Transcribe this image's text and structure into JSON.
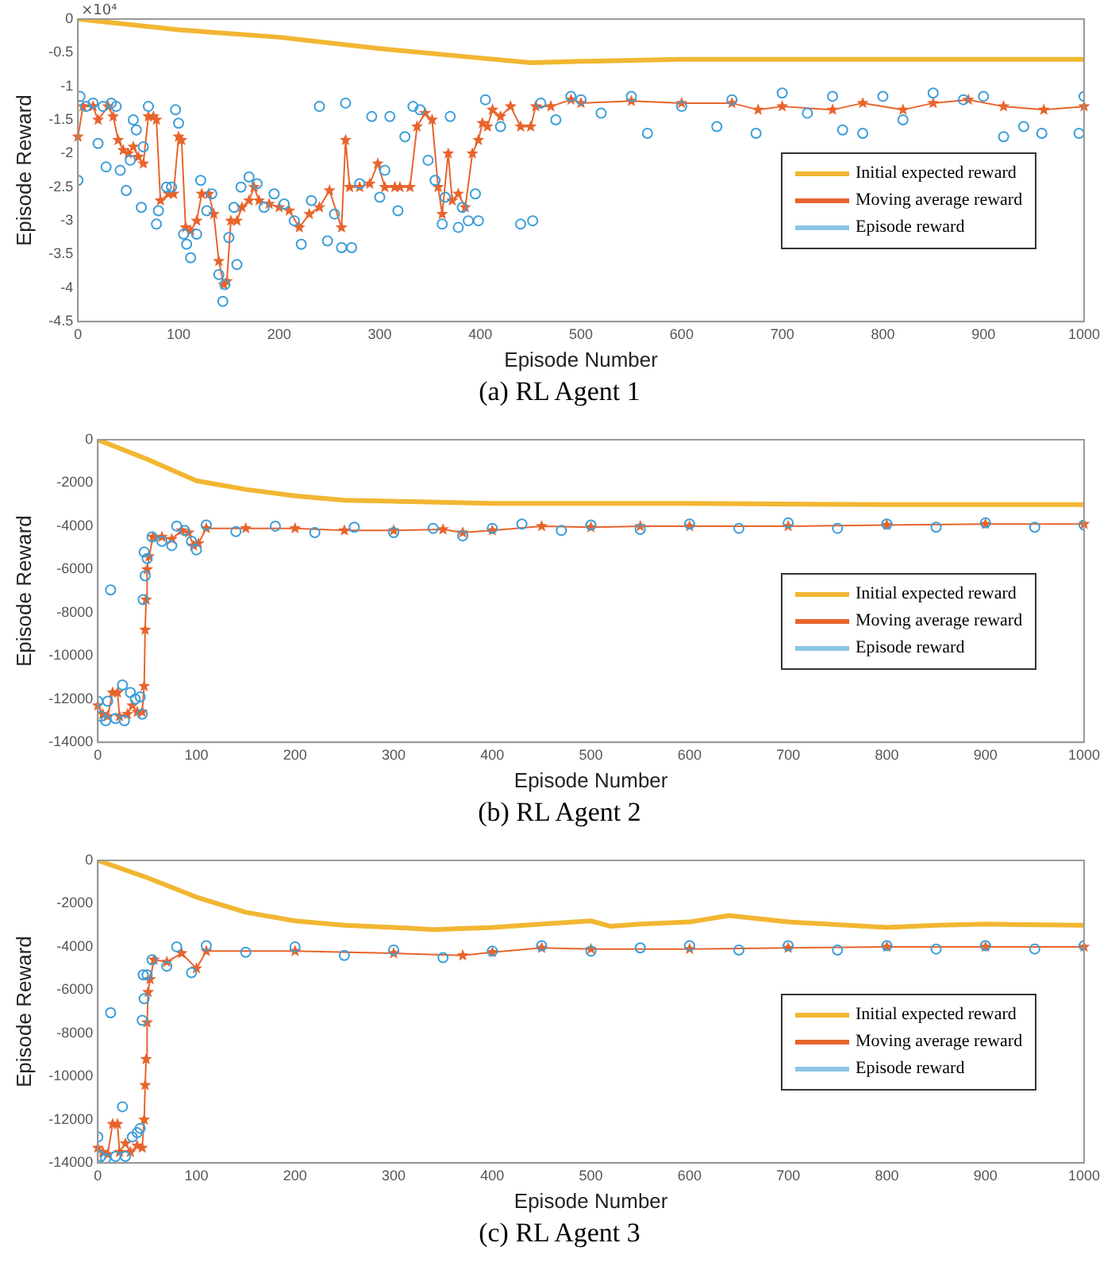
{
  "chart_data": [
    {
      "type": "line",
      "title": "(a) RL Agent 1",
      "xlabel": "Episode Number",
      "ylabel": "Episode Reward",
      "annotations": [
        "×10⁴"
      ],
      "xlim": [
        0,
        1000
      ],
      "xticks": [
        0,
        100,
        200,
        300,
        400,
        500,
        600,
        700,
        800,
        900,
        1000
      ],
      "ylim": [
        -4.5,
        0
      ],
      "yticks": [
        -4.5,
        -4,
        -3.5,
        -3,
        -2.5,
        -2,
        -1.5,
        -1,
        -0.5,
        0
      ],
      "grid": false,
      "legend": "right",
      "series": [
        {
          "name": "Initial expected reward",
          "color": "#f2b632",
          "marker": "none",
          "x": [
            0,
            100,
            200,
            300,
            400,
            450,
            500,
            600,
            700,
            800,
            900,
            1000
          ],
          "values": [
            0,
            -0.16,
            -0.27,
            -0.44,
            -0.58,
            -0.65,
            -0.63,
            -0.6,
            -0.6,
            -0.6,
            -0.6,
            -0.6
          ]
        },
        {
          "name": "Moving average reward",
          "color": "#e8642c",
          "marker": "star",
          "x": [
            0,
            5,
            15,
            20,
            30,
            35,
            40,
            45,
            50,
            55,
            60,
            65,
            70,
            75,
            78,
            82,
            90,
            95,
            100,
            103,
            107,
            112,
            118,
            123,
            130,
            135,
            140,
            145,
            148,
            152,
            158,
            163,
            170,
            175,
            180,
            190,
            200,
            210,
            220,
            230,
            240,
            250,
            262,
            266,
            270,
            280,
            290,
            298,
            305,
            315,
            320,
            330,
            337,
            345,
            352,
            358,
            362,
            368,
            372,
            378,
            385,
            392,
            398,
            402,
            407,
            412,
            420,
            430,
            440,
            450,
            455,
            470,
            490,
            500,
            550,
            600,
            650,
            676,
            700,
            750,
            780,
            820,
            850,
            885,
            920,
            960,
            1000
          ],
          "values": [
            -1.75,
            -1.3,
            -1.3,
            -1.5,
            -1.3,
            -1.45,
            -1.8,
            -1.95,
            -2.0,
            -1.9,
            -2.05,
            -2.15,
            -1.45,
            -1.45,
            -1.5,
            -2.7,
            -2.6,
            -2.6,
            -1.75,
            -1.8,
            -3.1,
            -3.15,
            -3.0,
            -2.6,
            -2.6,
            -2.9,
            -3.6,
            -3.95,
            -3.9,
            -3.0,
            -3.0,
            -2.8,
            -2.7,
            -2.5,
            -2.7,
            -2.75,
            -2.8,
            -2.85,
            -3.1,
            -2.9,
            -2.8,
            -2.55,
            -3.1,
            -1.8,
            -2.5,
            -2.5,
            -2.45,
            -2.15,
            -2.5,
            -2.5,
            -2.5,
            -2.5,
            -1.6,
            -1.4,
            -1.5,
            -2.5,
            -2.9,
            -2.0,
            -2.7,
            -2.6,
            -2.8,
            -2.0,
            -1.8,
            -1.55,
            -1.6,
            -1.35,
            -1.45,
            -1.3,
            -1.6,
            -1.6,
            -1.3,
            -1.3,
            -1.2,
            -1.25,
            -1.22,
            -1.25,
            -1.25,
            -1.35,
            -1.3,
            -1.35,
            -1.25,
            -1.35,
            -1.25,
            -1.2,
            -1.3,
            -1.35,
            -1.3
          ]
        },
        {
          "name": "Episode reward",
          "color": "#3d9ed8",
          "type": "scatter",
          "marker": "circle",
          "x": [
            0,
            2,
            8,
            15,
            20,
            25,
            28,
            33,
            38,
            42,
            48,
            52,
            55,
            58,
            63,
            65,
            70,
            78,
            80,
            88,
            93,
            97,
            100,
            105,
            108,
            112,
            118,
            122,
            128,
            133,
            140,
            144,
            146,
            150,
            155,
            158,
            162,
            170,
            178,
            185,
            195,
            205,
            215,
            222,
            232,
            240,
            248,
            255,
            262,
            266,
            272,
            280,
            292,
            300,
            305,
            310,
            318,
            325,
            333,
            340,
            348,
            355,
            362,
            365,
            370,
            378,
            382,
            388,
            395,
            398,
            405,
            420,
            440,
            452,
            460,
            475,
            490,
            500,
            520,
            550,
            566,
            600,
            635,
            650,
            674,
            700,
            725,
            750,
            760,
            780,
            800,
            820,
            850,
            880,
            900,
            920,
            940,
            958,
            995,
            1000
          ],
          "values": [
            -2.4,
            -1.15,
            -1.3,
            -1.25,
            -1.85,
            -1.3,
            -2.2,
            -1.25,
            -1.3,
            -2.25,
            -2.55,
            -2.1,
            -1.5,
            -1.65,
            -2.8,
            -1.9,
            -1.3,
            -3.05,
            -2.85,
            -2.5,
            -2.5,
            -1.35,
            -1.55,
            -3.2,
            -3.35,
            -3.55,
            -3.2,
            -2.4,
            -2.85,
            -2.6,
            -3.8,
            -4.2,
            -3.95,
            -3.25,
            -2.8,
            -3.65,
            -2.5,
            -2.35,
            -2.45,
            -2.8,
            -2.6,
            -2.75,
            -3.0,
            -3.35,
            -2.7,
            -1.3,
            -3.3,
            -2.9,
            -3.4,
            -1.25,
            -3.4,
            -2.45,
            -1.45,
            -2.65,
            -2.25,
            -1.45,
            -2.85,
            -1.75,
            -1.3,
            -1.35,
            -2.1,
            -2.4,
            -3.05,
            -2.65,
            -1.45,
            -3.1,
            -2.8,
            -3.0,
            -2.6,
            -3.0,
            -1.2,
            -1.6,
            -3.05,
            -3.0,
            -1.25,
            -1.5,
            -1.15,
            -1.2,
            -1.4,
            -1.15,
            -1.7,
            -1.3,
            -1.6,
            -1.2,
            -1.7,
            -1.1,
            -1.4,
            -1.15,
            -1.65,
            -1.7,
            -1.15,
            -1.5,
            -1.1,
            -1.2,
            -1.15,
            -1.75,
            -1.6,
            -1.7,
            -1.7,
            -1.15
          ]
        }
      ]
    },
    {
      "type": "line",
      "title": "(b) RL Agent 2",
      "xlabel": "Episode Number",
      "ylabel": "Episode Reward",
      "xlim": [
        0,
        1000
      ],
      "xticks": [
        0,
        100,
        200,
        300,
        400,
        500,
        600,
        700,
        800,
        900,
        1000
      ],
      "ylim": [
        -14000,
        0
      ],
      "yticks": [
        -14000,
        -12000,
        -10000,
        -8000,
        -6000,
        -4000,
        -2000,
        0
      ],
      "grid": false,
      "legend": "right",
      "series": [
        {
          "name": "Initial expected reward",
          "color": "#f2b632",
          "marker": "none",
          "x": [
            0,
            50,
            100,
            150,
            200,
            250,
            300,
            400,
            500,
            600,
            800,
            1000
          ],
          "values": [
            0,
            -900,
            -1900,
            -2300,
            -2600,
            -2800,
            -2850,
            -2950,
            -2950,
            -2950,
            -3000,
            -3000
          ]
        },
        {
          "name": "Moving average reward",
          "color": "#e8642c",
          "marker": "star",
          "x": [
            0,
            5,
            10,
            15,
            20,
            22,
            30,
            35,
            40,
            45,
            47,
            48,
            49,
            50,
            52,
            56,
            65,
            75,
            85,
            92,
            97,
            102,
            110,
            150,
            200,
            250,
            300,
            350,
            370,
            400,
            450,
            500,
            550,
            600,
            700,
            800,
            900,
            1000
          ],
          "values": [
            -12300,
            -12700,
            -12800,
            -11700,
            -11700,
            -12800,
            -12700,
            -12300,
            -12600,
            -12600,
            -11400,
            -8800,
            -7400,
            -6000,
            -5400,
            -4500,
            -4500,
            -4600,
            -4200,
            -4300,
            -4900,
            -4800,
            -4100,
            -4100,
            -4100,
            -4200,
            -4200,
            -4150,
            -4300,
            -4200,
            -4000,
            -4050,
            -4000,
            -4000,
            -4000,
            -3950,
            -3900,
            -3900
          ]
        },
        {
          "name": "Episode reward",
          "color": "#3d9ed8",
          "type": "scatter",
          "marker": "circle",
          "x": [
            0,
            3,
            8,
            10,
            13,
            18,
            25,
            27,
            33,
            38,
            43,
            45,
            46,
            47,
            48,
            50,
            55,
            65,
            75,
            80,
            88,
            95,
            100,
            110,
            140,
            180,
            220,
            260,
            300,
            340,
            370,
            400,
            430,
            470,
            500,
            550,
            600,
            650,
            700,
            750,
            800,
            850,
            900,
            950,
            1000
          ],
          "values": [
            -12100,
            -12800,
            -13000,
            -12100,
            -6950,
            -12900,
            -11350,
            -13000,
            -11700,
            -12000,
            -11900,
            -12700,
            -7400,
            -5200,
            -6300,
            -5500,
            -4500,
            -4700,
            -4900,
            -4000,
            -4200,
            -4700,
            -5100,
            -3950,
            -4250,
            -4000,
            -4300,
            -4050,
            -4300,
            -4100,
            -4450,
            -4100,
            -3900,
            -4200,
            -3950,
            -4150,
            -3900,
            -4100,
            -3850,
            -4100,
            -3900,
            -4050,
            -3850,
            -4050,
            -3950
          ]
        }
      ]
    },
    {
      "type": "line",
      "title": "(c) RL Agent 3",
      "xlabel": "Episode Number",
      "ylabel": "Episode Reward",
      "xlim": [
        0,
        1000
      ],
      "xticks": [
        0,
        100,
        200,
        300,
        400,
        500,
        600,
        700,
        800,
        900,
        1000
      ],
      "ylim": [
        -14000,
        0
      ],
      "yticks": [
        -14000,
        -12000,
        -10000,
        -8000,
        -6000,
        -4000,
        -2000,
        0
      ],
      "grid": false,
      "legend": "right",
      "series": [
        {
          "name": "Initial expected reward",
          "color": "#f2b632",
          "marker": "none",
          "x": [
            0,
            50,
            100,
            150,
            200,
            250,
            300,
            340,
            400,
            450,
            500,
            520,
            550,
            600,
            640,
            700,
            800,
            850,
            900,
            1000
          ],
          "values": [
            0,
            -800,
            -1700,
            -2400,
            -2800,
            -3000,
            -3100,
            -3200,
            -3100,
            -2950,
            -2800,
            -3050,
            -2950,
            -2850,
            -2550,
            -2850,
            -3100,
            -3000,
            -2950,
            -3000
          ]
        },
        {
          "name": "Moving average reward",
          "color": "#e8642c",
          "marker": "star",
          "x": [
            0,
            5,
            10,
            15,
            20,
            22,
            28,
            33,
            40,
            45,
            47,
            48,
            49,
            50,
            51,
            53,
            57,
            70,
            85,
            100,
            110,
            200,
            300,
            370,
            400,
            450,
            500,
            600,
            700,
            800,
            900,
            1000
          ],
          "values": [
            -13300,
            -13500,
            -13600,
            -12200,
            -12200,
            -13500,
            -13100,
            -13500,
            -13200,
            -13300,
            -12000,
            -10400,
            -9200,
            -7500,
            -6100,
            -5500,
            -4600,
            -4700,
            -4300,
            -5000,
            -4200,
            -4200,
            -4300,
            -4400,
            -4250,
            -4050,
            -4100,
            -4100,
            -4050,
            -4000,
            -4000,
            -4000
          ]
        },
        {
          "name": "Episode reward",
          "color": "#3d9ed8",
          "type": "scatter",
          "marker": "circle",
          "x": [
            0,
            3,
            8,
            13,
            18,
            25,
            28,
            35,
            40,
            43,
            45,
            46,
            47,
            50,
            55,
            70,
            80,
            95,
            110,
            150,
            200,
            250,
            300,
            350,
            400,
            450,
            500,
            550,
            600,
            650,
            700,
            750,
            800,
            850,
            900,
            950,
            1000
          ],
          "values": [
            -12800,
            -13700,
            -13800,
            -7050,
            -13700,
            -11400,
            -13700,
            -12800,
            -12600,
            -12400,
            -7400,
            -5300,
            -6400,
            -5300,
            -4600,
            -4900,
            -4000,
            -5200,
            -3950,
            -4250,
            -4000,
            -4400,
            -4150,
            -4500,
            -4200,
            -3950,
            -4200,
            -4050,
            -3950,
            -4150,
            -3950,
            -4150,
            -3950,
            -4100,
            -3950,
            -4100,
            -3950
          ]
        }
      ]
    }
  ]
}
